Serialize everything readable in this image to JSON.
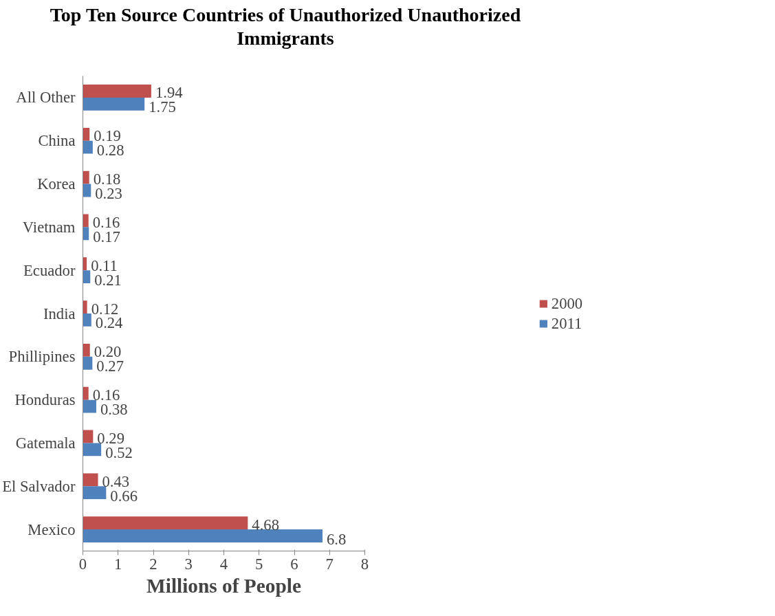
{
  "chart_data": {
    "type": "bar",
    "orientation": "horizontal",
    "title": "Top Ten Source Countries of Unauthorized Unauthorized Immigrants",
    "xlabel": "Millions of People",
    "categories": [
      "All Other",
      "China",
      "Korea",
      "Vietnam",
      "Ecuador",
      "India",
      "Phillipines",
      "Honduras",
      "Gatemala",
      "El Salvador",
      "Mexico"
    ],
    "series": [
      {
        "name": "2000",
        "color": "#c0504d",
        "values": [
          1.94,
          0.19,
          0.18,
          0.16,
          0.11,
          0.12,
          0.2,
          0.16,
          0.29,
          0.43,
          4.68
        ],
        "value_labels": [
          "1.94",
          "0.19",
          "0.18",
          "0.16",
          "0.11",
          "0.12",
          "0.20",
          "0.16",
          "0.29",
          "0.43",
          "4.68"
        ]
      },
      {
        "name": "2011",
        "color": "#4f81bd",
        "values": [
          1.75,
          0.28,
          0.23,
          0.17,
          0.21,
          0.24,
          0.27,
          0.38,
          0.52,
          0.66,
          6.8
        ],
        "value_labels": [
          "1.75",
          "0.28",
          "0.23",
          "0.17",
          "0.21",
          "0.24",
          "0.27",
          "0.38",
          "0.52",
          "0.66",
          "6.8"
        ]
      }
    ],
    "xlim": [
      0,
      8
    ],
    "xticks": [
      0,
      1,
      2,
      3,
      4,
      5,
      6,
      7,
      8
    ],
    "grid": false,
    "legend": "right"
  }
}
